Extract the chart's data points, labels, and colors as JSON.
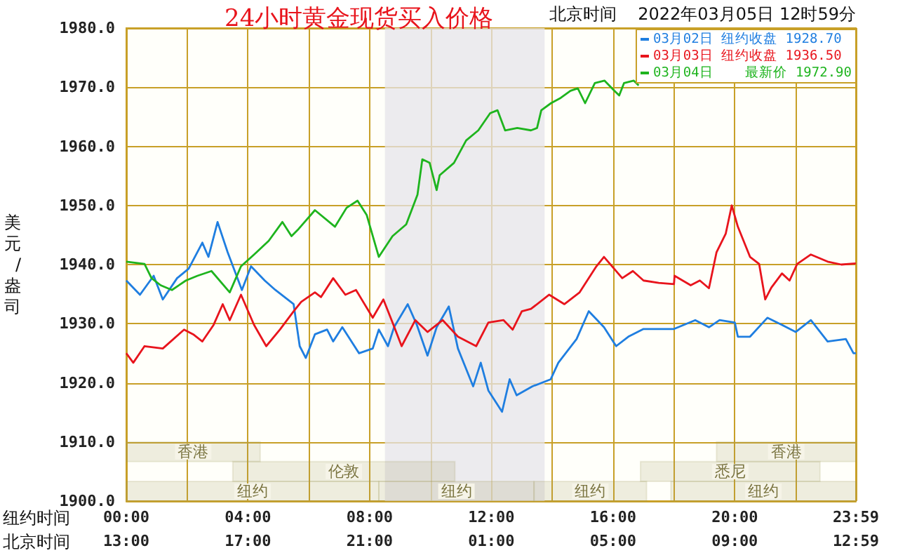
{
  "chart_data": {
    "type": "line",
    "title": "24小时黄金现货买入价格",
    "subtitle": "北京时间    2022年03月05日 12时59分",
    "ylabel": "美元/盎司",
    "annotations": [
      "纽约时间",
      "北京时间"
    ],
    "xlim": [
      0,
      23.98
    ],
    "xticks": [
      {
        "value": 0,
        "label": "00:00"
      },
      {
        "value": 2,
        "label": null
      },
      {
        "value": 4,
        "label": "04:00"
      },
      {
        "value": 6,
        "label": null
      },
      {
        "value": 8,
        "label": "08:00"
      },
      {
        "value": 10,
        "label": null
      },
      {
        "value": 12,
        "label": "12:00"
      },
      {
        "value": 14,
        "label": null
      },
      {
        "value": 16,
        "label": "16:00"
      },
      {
        "value": 18,
        "label": null
      },
      {
        "value": 20,
        "label": "20:00"
      },
      {
        "value": 22,
        "label": null
      },
      {
        "value": 23.98,
        "label": "23:59"
      }
    ],
    "x2lim": [
      "2022-03-04T13:00",
      "2022-03-05T12:59"
    ],
    "x2ticks": [
      {
        "value": "2022-03-04T13:00",
        "label": "13:00"
      },
      {
        "value": "2022-03-04T17:00",
        "label": "17:00"
      },
      {
        "value": "2022-03-04T21:00",
        "label": "21:00"
      },
      {
        "value": "2022-03-05T01:00",
        "label": "01:00"
      },
      {
        "value": "2022-03-05T05:00",
        "label": "05:00"
      },
      {
        "value": "2022-03-05T09:00",
        "label": "09:00"
      },
      {
        "value": "2022-03-05T12:59",
        "label": "12:59"
      }
    ],
    "ylim": [
      1900,
      1980
    ],
    "yticks": [
      {
        "value": 1900,
        "label": "1900.0"
      },
      {
        "value": 1910,
        "label": "1910.0"
      },
      {
        "value": 1920,
        "label": "1920.0"
      },
      {
        "value": 1930,
        "label": "1930.0"
      },
      {
        "value": 1940,
        "label": "1940.0"
      },
      {
        "value": 1950,
        "label": "1950.0"
      },
      {
        "value": 1960,
        "label": "1960.0"
      },
      {
        "value": 1970,
        "label": "1970.0"
      },
      {
        "value": 1980,
        "label": "1980.0"
      }
    ],
    "grid": true,
    "legend": "top right",
    "marker": "none",
    "line_style": "solid",
    "bands": [
      {
        "axis": "x",
        "from": 8.5,
        "to": 13.75,
        "color": "#e6e4ea"
      },
      {
        "axis": "x",
        "from": 0,
        "to": 4.4,
        "label": "香港",
        "color": "#a09a60"
      },
      {
        "axis": "x",
        "from": 19.4,
        "to": 23.98,
        "label": "香港",
        "color": "#a09a60"
      },
      {
        "axis": "x",
        "from": 3.5,
        "to": 10.8,
        "label": "伦敦",
        "color": "#a09a60"
      },
      {
        "axis": "x",
        "from": 16.9,
        "to": 22.8,
        "label": "悉尼",
        "color": "#a09a60"
      },
      {
        "axis": "x",
        "from": 0,
        "to": 8.3,
        "label": "纽约",
        "color": "#a09a60"
      },
      {
        "axis": "x",
        "from": 8.3,
        "to": 13.4,
        "label": "纽约",
        "color": "#a09a60"
      },
      {
        "axis": "x",
        "from": 13.4,
        "to": 17.1,
        "label": "纽约",
        "color": "#a09a60"
      },
      {
        "axis": "x",
        "from": 17.9,
        "to": 23.98,
        "label": "纽约",
        "color": "#a09a60"
      }
    ],
    "series": [
      {
        "name": "03月02日 纽约收盘 1928.70",
        "color": "#1f7ee0",
        "x": [
          0,
          0.45,
          0.9,
          1.2,
          1.67,
          2.05,
          2.5,
          2.7,
          3.0,
          3.33,
          3.8,
          4.1,
          4.55,
          4.9,
          5.5,
          5.7,
          5.9,
          6.2,
          6.6,
          6.8,
          7.1,
          7.65,
          8.1,
          8.3,
          8.6,
          8.8,
          9.25,
          9.55,
          9.9,
          10.2,
          10.6,
          10.9,
          11.4,
          11.65,
          11.9,
          12.35,
          12.6,
          12.83,
          13.35,
          13.95,
          14.2,
          14.8,
          15.2,
          15.7,
          16.1,
          16.5,
          17.0,
          18.0,
          18.7,
          19.15,
          19.5,
          20.0,
          20.1,
          20.5,
          21.07,
          21.55,
          22.0,
          22.5,
          23.05,
          23.65,
          23.9,
          23.98
        ],
        "values": [
          1937.3,
          1934.9,
          1938.1,
          1934.1,
          1937.7,
          1939.3,
          1943.7,
          1941.3,
          1947.2,
          1942.1,
          1935.7,
          1939.7,
          1937.3,
          1935.7,
          1933.3,
          1926.2,
          1924.2,
          1928.2,
          1929.0,
          1927.0,
          1929.4,
          1925.0,
          1925.8,
          1929.0,
          1926.2,
          1929.4,
          1933.3,
          1929.8,
          1924.6,
          1929.4,
          1932.9,
          1925.8,
          1919.4,
          1923.4,
          1918.7,
          1915.1,
          1920.6,
          1917.9,
          1919.4,
          1920.6,
          1923.4,
          1927.4,
          1932.1,
          1929.4,
          1926.2,
          1927.8,
          1929.1,
          1929.1,
          1930.6,
          1929.4,
          1930.6,
          1930.2,
          1927.8,
          1927.8,
          1931.0,
          1929.8,
          1928.6,
          1930.6,
          1927.0,
          1927.4,
          1925.0,
          1925.0
        ]
      },
      {
        "name": "03月03日 纽约收盘 1936.50",
        "color": "#e8141c",
        "x": [
          0,
          0.23,
          0.6,
          1.2,
          1.9,
          2.2,
          2.5,
          2.87,
          3.17,
          3.4,
          3.77,
          4.2,
          4.6,
          5.05,
          5.5,
          5.75,
          6.2,
          6.4,
          6.8,
          7.2,
          7.55,
          8.1,
          8.45,
          8.75,
          9.05,
          9.5,
          9.9,
          10.4,
          10.9,
          11.5,
          11.9,
          12.4,
          12.7,
          13.0,
          13.3,
          13.9,
          14.4,
          14.9,
          15.45,
          15.7,
          16.3,
          16.65,
          17.0,
          17.5,
          18.0,
          18.02,
          18.55,
          18.85,
          19.15,
          19.4,
          19.7,
          19.9,
          20.1,
          20.5,
          20.8,
          21.0,
          21.2,
          21.55,
          21.8,
          22.05,
          22.5,
          23.05,
          23.5,
          23.98
        ],
        "values": [
          1925.0,
          1923.4,
          1926.2,
          1925.8,
          1929.0,
          1928.2,
          1927.0,
          1929.8,
          1933.3,
          1930.6,
          1934.9,
          1929.8,
          1926.2,
          1929.0,
          1932.1,
          1933.7,
          1935.3,
          1934.5,
          1937.7,
          1934.9,
          1935.7,
          1931.0,
          1934.1,
          1930.2,
          1926.2,
          1930.6,
          1928.6,
          1930.6,
          1927.8,
          1926.2,
          1930.2,
          1930.6,
          1929.0,
          1932.1,
          1932.5,
          1934.9,
          1933.3,
          1935.3,
          1939.7,
          1941.3,
          1937.7,
          1938.9,
          1937.3,
          1936.9,
          1936.7,
          1938.1,
          1936.5,
          1937.3,
          1936.0,
          1942.1,
          1945.2,
          1950.0,
          1946.4,
          1941.3,
          1940.1,
          1934.1,
          1936.1,
          1938.5,
          1937.3,
          1940.1,
          1941.7,
          1940.5,
          1940.0,
          1940.2
        ]
      },
      {
        "name": "03月04日    最新价 1972.90",
        "color": "#1eb41e",
        "x": [
          0,
          0.6,
          0.83,
          1.13,
          1.5,
          1.96,
          2.34,
          2.8,
          3.4,
          3.77,
          4.2,
          4.68,
          5.13,
          5.43,
          5.66,
          6.2,
          6.86,
          7.24,
          7.6,
          7.9,
          8.3,
          8.75,
          9.2,
          9.57,
          9.73,
          9.97,
          10.2,
          10.3,
          10.77,
          11.17,
          11.57,
          11.96,
          12.2,
          12.45,
          12.85,
          13.3,
          13.5,
          13.64,
          13.96,
          14.28,
          14.6,
          14.84,
          15.08,
          15.4,
          15.72,
          16.04,
          16.2,
          16.36,
          16.68,
          16.84
        ],
        "values": [
          1940.5,
          1940.1,
          1937.7,
          1936.5,
          1935.7,
          1937.3,
          1938.1,
          1938.9,
          1935.3,
          1939.7,
          1941.7,
          1944.0,
          1947.2,
          1944.8,
          1946.0,
          1949.2,
          1946.4,
          1949.6,
          1950.8,
          1948.4,
          1941.3,
          1944.8,
          1946.8,
          1951.8,
          1957.8,
          1957.2,
          1952.6,
          1955.1,
          1957.2,
          1961.0,
          1962.7,
          1965.6,
          1966.1,
          1962.7,
          1963.1,
          1962.7,
          1963.1,
          1966.1,
          1967.3,
          1968.2,
          1969.4,
          1969.8,
          1967.3,
          1970.7,
          1971.1,
          1969.4,
          1968.6,
          1970.7,
          1971.1,
          1970.3
        ]
      }
    ]
  }
}
